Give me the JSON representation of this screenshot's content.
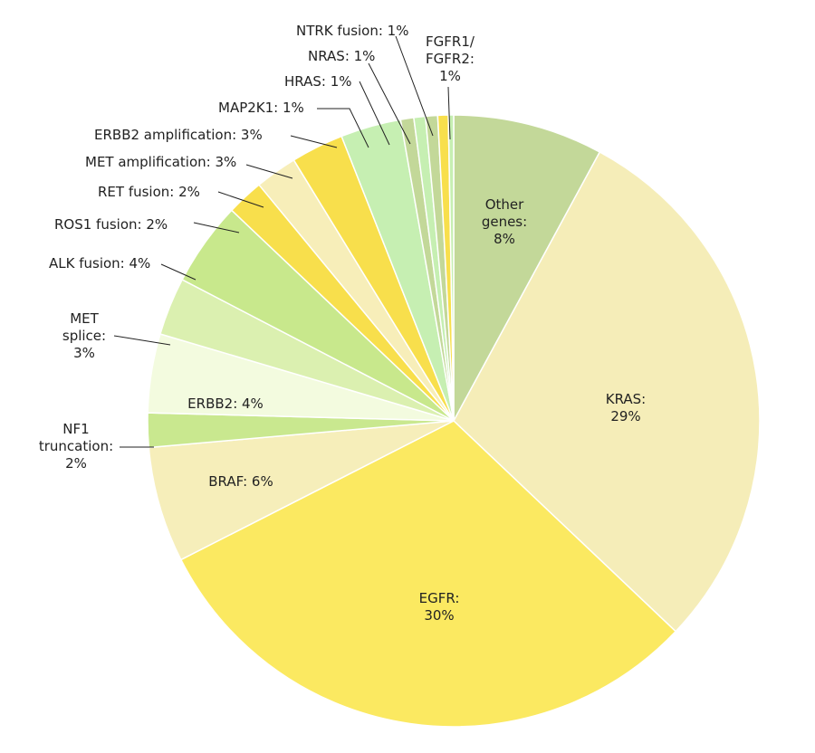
{
  "chart_data": {
    "type": "pie",
    "title": "",
    "slices": [
      {
        "name": "Other genes",
        "value": 8,
        "display": "Other genes: 8%",
        "color": "#c3d899"
      },
      {
        "name": "KRAS",
        "value": 29,
        "display": "KRAS: 29%",
        "color": "#f5edb8"
      },
      {
        "name": "EGFR",
        "value": 30,
        "display": "EGFR: 30%",
        "color": "#fbe961"
      },
      {
        "name": "BRAF",
        "value": 6,
        "display": "BRAF: 6%",
        "color": "#f6eeba"
      },
      {
        "name": "NF1 truncation",
        "value": 2,
        "display": "NF1 truncation: 2%",
        "color": "#c9e88f"
      },
      {
        "name": "ERBB2",
        "value": 4,
        "display": "ERBB2: 4%",
        "color": "#f3fbdf"
      },
      {
        "name": "MET splice",
        "value": 3,
        "display": "MET splice: 3%",
        "color": "#dbf0b0"
      },
      {
        "name": "ALK fusion",
        "value": 4,
        "display": "ALK fusion: 4%",
        "color": "#c8e88c"
      },
      {
        "name": "ROS1 fusion",
        "value": 2,
        "display": "ROS1 fusion: 2%",
        "color": "#f8df4c"
      },
      {
        "name": "RET fusion",
        "value": 2,
        "display": "RET fusion: 2%",
        "color": "#f7eeb9"
      },
      {
        "name": "MET amplification",
        "value": 3,
        "display": "MET amplification: 3%",
        "color": "#f8df4c"
      },
      {
        "name": "ERBB2 amplification",
        "value": 3,
        "display": "ERBB2 amplification: 3%",
        "color": "#c6efb2"
      },
      {
        "name": "MAP2K1",
        "value": 1,
        "display": "MAP2K1: 1%",
        "color": "#c3d899"
      },
      {
        "name": "HRAS",
        "value": 1,
        "display": "HRAS: 1%",
        "color": "#c6efb2"
      },
      {
        "name": "NRAS",
        "value": 1,
        "display": "NRAS: 1%",
        "color": "#c3d899"
      },
      {
        "name": "NTRK fusion",
        "value": 1,
        "display": "NTRK fusion: 1%",
        "color": "#f8df4c"
      },
      {
        "name": "FGFR1/ FGFR2",
        "value": 1,
        "display": "FGFR1/ FGFR2: 1%",
        "color": "#c6efb2"
      }
    ]
  }
}
